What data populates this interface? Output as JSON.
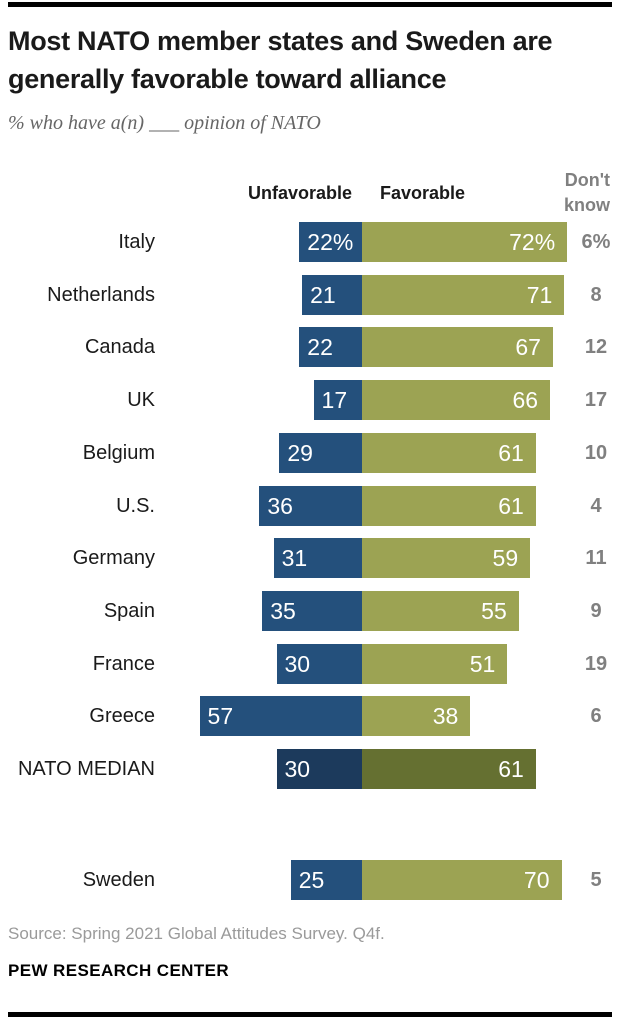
{
  "title": "Most NATO member states and Sweden are generally favorable toward alliance",
  "subtitle": "% who have a(n) ___ opinion of NATO",
  "legend": {
    "unfavorable": "Unfavorable",
    "favorable": "Favorable",
    "dont_know_line1": "Don't",
    "dont_know_line2": "know"
  },
  "colors": {
    "unfavorable": "#24507C",
    "favorable": "#9CA353",
    "median_unfavorable": "#1C3A5C",
    "median_favorable": "#657031",
    "dont_know_text": "#808080"
  },
  "chart_data": {
    "type": "bar",
    "subtype": "horizontal-diverging-stacked",
    "title": "Most NATO member states and Sweden are generally favorable toward alliance",
    "xlabel": "",
    "ylabel": "",
    "axis_note": "values are percentages; unfavorable bars extend left of shared baseline, favorable bars extend right",
    "legend_position": "top",
    "grid": false,
    "categories": [
      "Italy",
      "Netherlands",
      "Canada",
      "UK",
      "Belgium",
      "U.S.",
      "Germany",
      "Spain",
      "France",
      "Greece",
      "NATO MEDIAN",
      "Sweden"
    ],
    "series": [
      {
        "name": "Unfavorable",
        "values": [
          22,
          21,
          22,
          17,
          29,
          36,
          31,
          35,
          30,
          57,
          30,
          25
        ]
      },
      {
        "name": "Favorable",
        "values": [
          72,
          71,
          67,
          66,
          61,
          61,
          59,
          55,
          51,
          38,
          61,
          70
        ]
      },
      {
        "name": "Don't know",
        "values": [
          6,
          8,
          12,
          17,
          10,
          4,
          11,
          9,
          19,
          6,
          null,
          5
        ]
      }
    ],
    "rows": [
      {
        "label": "Italy",
        "unfavorable": 22,
        "favorable": 72,
        "dont_know": 6,
        "unfavorable_text": "22%",
        "favorable_text": "72%",
        "dont_know_text": "6%",
        "median": false,
        "separate": false
      },
      {
        "label": "Netherlands",
        "unfavorable": 21,
        "favorable": 71,
        "dont_know": 8,
        "unfavorable_text": "21",
        "favorable_text": "71",
        "dont_know_text": "8",
        "median": false,
        "separate": false
      },
      {
        "label": "Canada",
        "unfavorable": 22,
        "favorable": 67,
        "dont_know": 12,
        "unfavorable_text": "22",
        "favorable_text": "67",
        "dont_know_text": "12",
        "median": false,
        "separate": false
      },
      {
        "label": "UK",
        "unfavorable": 17,
        "favorable": 66,
        "dont_know": 17,
        "unfavorable_text": "17",
        "favorable_text": "66",
        "dont_know_text": "17",
        "median": false,
        "separate": false
      },
      {
        "label": "Belgium",
        "unfavorable": 29,
        "favorable": 61,
        "dont_know": 10,
        "unfavorable_text": "29",
        "favorable_text": "61",
        "dont_know_text": "10",
        "median": false,
        "separate": false
      },
      {
        "label": "U.S.",
        "unfavorable": 36,
        "favorable": 61,
        "dont_know": 4,
        "unfavorable_text": "36",
        "favorable_text": "61",
        "dont_know_text": "4",
        "median": false,
        "separate": false
      },
      {
        "label": "Germany",
        "unfavorable": 31,
        "favorable": 59,
        "dont_know": 11,
        "unfavorable_text": "31",
        "favorable_text": "59",
        "dont_know_text": "11",
        "median": false,
        "separate": false
      },
      {
        "label": "Spain",
        "unfavorable": 35,
        "favorable": 55,
        "dont_know": 9,
        "unfavorable_text": "35",
        "favorable_text": "55",
        "dont_know_text": "9",
        "median": false,
        "separate": false
      },
      {
        "label": "France",
        "unfavorable": 30,
        "favorable": 51,
        "dont_know": 19,
        "unfavorable_text": "30",
        "favorable_text": "51",
        "dont_know_text": "19",
        "median": false,
        "separate": false
      },
      {
        "label": "Greece",
        "unfavorable": 57,
        "favorable": 38,
        "dont_know": 6,
        "unfavorable_text": "57",
        "favorable_text": "38",
        "dont_know_text": "6",
        "median": false,
        "separate": false
      },
      {
        "label": "NATO MEDIAN",
        "unfavorable": 30,
        "favorable": 61,
        "dont_know": null,
        "unfavorable_text": "30",
        "favorable_text": "61",
        "dont_know_text": "",
        "median": true,
        "separate": false
      },
      {
        "label": "Sweden",
        "unfavorable": 25,
        "favorable": 70,
        "dont_know": 5,
        "unfavorable_text": "25",
        "favorable_text": "70",
        "dont_know_text": "5",
        "median": false,
        "separate": true
      }
    ]
  },
  "footer": {
    "source": "Source: Spring 2021 Global Attitudes Survey. Q4f.",
    "brand": "PEW RESEARCH CENTER"
  }
}
